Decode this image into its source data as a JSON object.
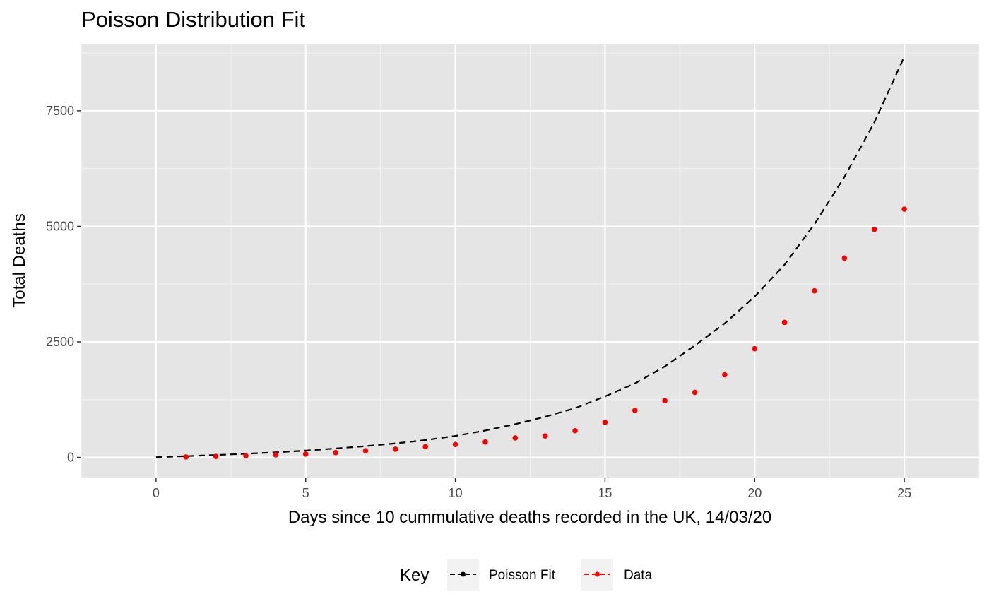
{
  "chart_data": {
    "type": "line",
    "title": "Poisson Distribution Fit",
    "xlabel": "Days since 10 cummulative deaths recorded in the UK, 14/03/20",
    "ylabel": "Total Deaths",
    "xlim": [
      -2.5,
      27.5
    ],
    "ylim": [
      -450,
      8950
    ],
    "x_ticks": [
      0,
      5,
      10,
      15,
      20,
      25
    ],
    "x_tick_labels": [
      "0",
      "5",
      "10",
      "15",
      "20",
      "25"
    ],
    "y_ticks": [
      0,
      2500,
      5000,
      7500
    ],
    "y_tick_labels": [
      "0",
      "2500",
      "5000",
      "7500"
    ],
    "grid": true,
    "legend": {
      "title": "Key",
      "position": "bottom",
      "entries": [
        {
          "label": "Poisson Fit",
          "color": "#000000"
        },
        {
          "label": "Data",
          "color": "#ff0000"
        }
      ]
    },
    "series": [
      {
        "name": "Poisson Fit",
        "style": "dashed-line",
        "color": "#000000",
        "x": [
          0,
          1,
          2,
          3,
          4,
          5,
          6,
          7,
          8,
          9,
          10,
          11,
          12,
          13,
          14,
          15,
          16,
          17,
          18,
          19,
          20,
          21,
          22,
          23,
          24,
          25
        ],
        "values": [
          5,
          27,
          52,
          79,
          110,
          148,
          193,
          244,
          303,
          375,
          465,
          582,
          720,
          880,
          1065,
          1320,
          1600,
          1970,
          2420,
          2900,
          3480,
          4170,
          5050,
          6070,
          7250,
          8670
        ]
      },
      {
        "name": "Data",
        "style": "points",
        "color": "#ff0000",
        "x": [
          1,
          2,
          3,
          4,
          5,
          6,
          7,
          8,
          9,
          10,
          11,
          12,
          13,
          14,
          15,
          16,
          17,
          18,
          19,
          20,
          21,
          22,
          23,
          24,
          25
        ],
        "values": [
          10,
          21,
          35,
          55,
          72,
          104,
          144,
          177,
          233,
          281,
          335,
          422,
          465,
          578,
          759,
          1019,
          1228,
          1408,
          1789,
          2352,
          2921,
          3605,
          4313,
          4934,
          5373
        ]
      }
    ]
  }
}
